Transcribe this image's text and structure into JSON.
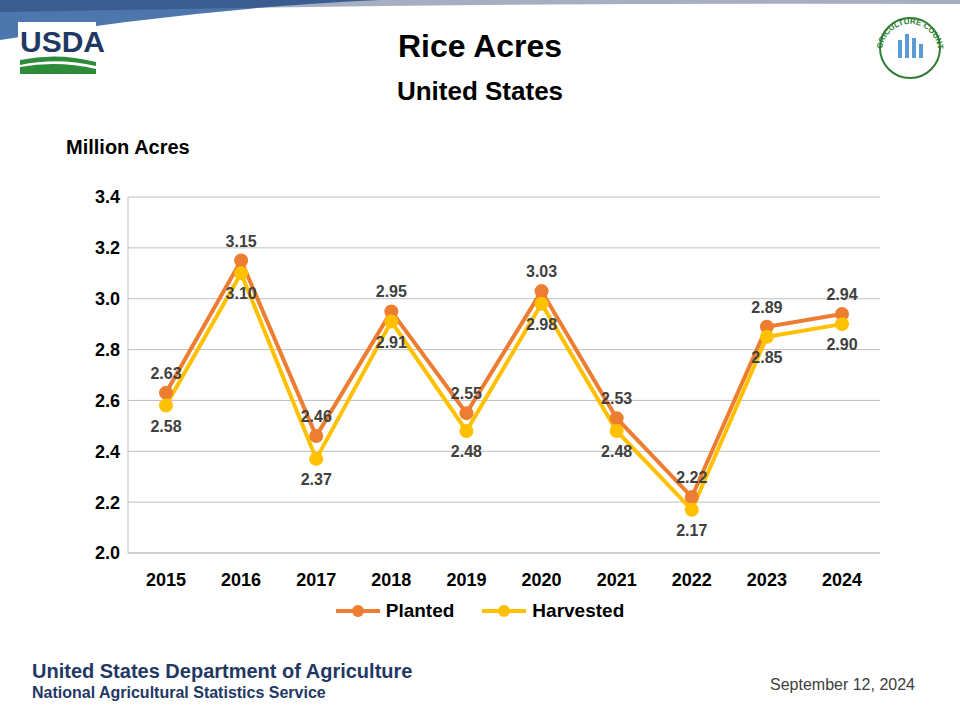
{
  "chart_data": {
    "type": "line",
    "title": "Rice Acres",
    "subtitle": "United States",
    "y_label": "Million Acres",
    "logo_text": "USDA",
    "badge_text": "AGRICULTURE COUNTS",
    "footer_title": "United States Department of Agriculture",
    "footer_subtitle": "National Agricultural Statistics Service",
    "date": "September 12, 2024",
    "categories": [
      "2015",
      "2016",
      "2017",
      "2018",
      "2019",
      "2020",
      "2021",
      "2022",
      "2023",
      "2024"
    ],
    "series": [
      {
        "name": "Planted",
        "color": "#ED7D31",
        "marker": "circle",
        "values": [
          2.63,
          3.15,
          2.46,
          2.95,
          2.55,
          3.03,
          2.53,
          2.22,
          2.89,
          2.94
        ]
      },
      {
        "name": "Harvested",
        "color": "#FFC000",
        "marker": "circle",
        "values": [
          2.58,
          3.1,
          2.37,
          2.91,
          2.48,
          2.98,
          2.48,
          2.17,
          2.85,
          2.9
        ],
        "value_labels": [
          "2.58",
          "3.10",
          "2.37",
          "2.91",
          "2.48",
          "2.98",
          "2.48",
          "2.17",
          "2.85",
          "2.90"
        ]
      }
    ],
    "ylim": [
      2.0,
      3.4
    ],
    "yticks": [
      {
        "value": 2,
        "label": "2.0"
      },
      2.2,
      2.4,
      2.6,
      2.8,
      {
        "value": 3,
        "label": "3.0"
      },
      3.2,
      3.4
    ],
    "grid": true,
    "legend": "bottom",
    "data_labels": true
  }
}
